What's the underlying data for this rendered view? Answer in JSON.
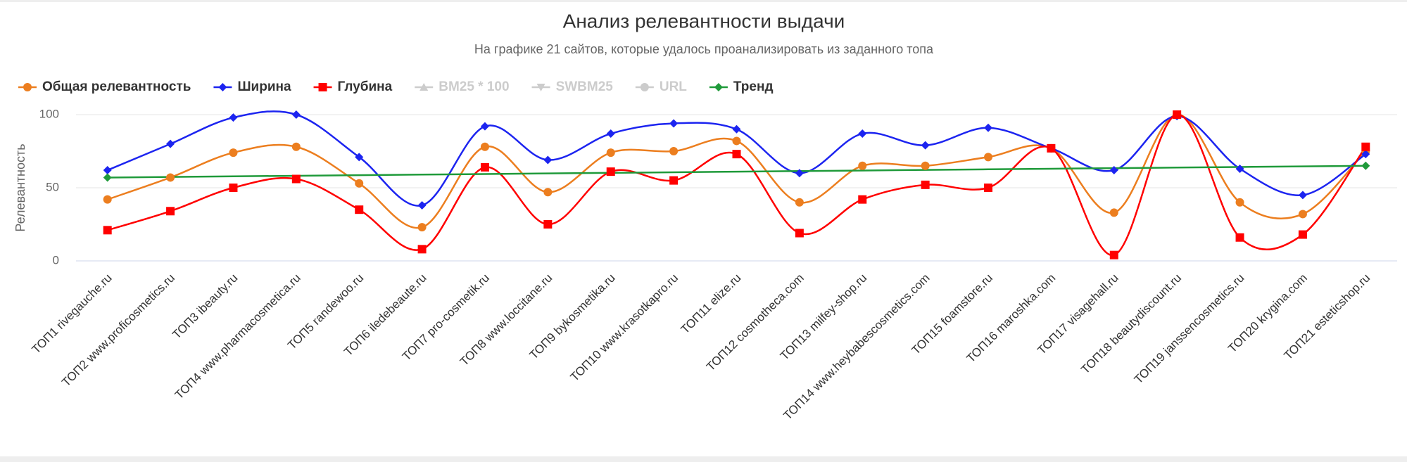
{
  "chart_data": {
    "type": "spline",
    "title": "Анализ релевантности выдачи",
    "subtitle": "На графике 21 сайтов, которые удалось проанализировать из заданного топа",
    "y_axis_label": "Релевантность",
    "categories": [
      "ТОП1 rivegauche.ru",
      "ТОП2 www.proficosmetics.ru",
      "ТОП3 ibeauty.ru",
      "ТОП4 www.pharmacosmetica.ru",
      "ТОП5 randewoo.ru",
      "ТОП6 iledebeaute.ru",
      "ТОП7 pro-cosmetik.ru",
      "ТОП8 www.loccitane.ru",
      "ТОП9 bykosmetika.ru",
      "ТОП10 www.krasotkapro.ru",
      "ТОП11 elize.ru",
      "ТОП12 cosmotheca.com",
      "ТОП13 milfey-shop.ru",
      "ТОП14 www.heybabescosmetics.com",
      "ТОП15 foamstore.ru",
      "ТОП16 maroshka.com",
      "ТОП17 visagehall.ru",
      "ТОП18 beautydiscount.ru",
      "ТОП19 janssencosmetics.ru",
      "ТОП20 krygina.com",
      "ТОП21 esteticshop.ru"
    ],
    "ylim": [
      0,
      100
    ],
    "yticks": [
      0,
      50,
      100
    ],
    "grid": true,
    "legend": "top-left",
    "series": [
      {
        "name": "Общая релевантность",
        "color": "#ec7e1f",
        "marker": "circle",
        "visible": true,
        "values": [
          42,
          57,
          74,
          78,
          53,
          23,
          78,
          47,
          74,
          75,
          82,
          40,
          65,
          65,
          71,
          77,
          33,
          100,
          40,
          32,
          75
        ]
      },
      {
        "name": "Ширина",
        "color": "#1c24f0",
        "marker": "diamond",
        "visible": true,
        "values": [
          62,
          80,
          98,
          100,
          71,
          38,
          92,
          69,
          87,
          94,
          90,
          60,
          87,
          79,
          91,
          77,
          62,
          99,
          63,
          45,
          73
        ]
      },
      {
        "name": "Глубина",
        "color": "#ff0000",
        "marker": "square",
        "visible": true,
        "values": [
          21,
          34,
          50,
          56,
          35,
          8,
          64,
          25,
          61,
          55,
          73,
          19,
          42,
          52,
          50,
          77,
          4,
          100,
          16,
          18,
          78
        ]
      },
      {
        "name": "BM25 * 100",
        "color": "#cccccc",
        "marker": "triangle",
        "visible": false
      },
      {
        "name": "SWBM25",
        "color": "#cccccc",
        "marker": "triangle-down",
        "visible": false
      },
      {
        "name": "URL",
        "color": "#cccccc",
        "marker": "circle",
        "visible": false
      },
      {
        "name": "Тренд",
        "color": "#1f9a3a",
        "marker": "diamond",
        "visible": true,
        "smooth": false,
        "endpoint_markers": true,
        "values": [
          57,
          57.4,
          57.8,
          58.2,
          58.6,
          59,
          59.4,
          59.8,
          60.2,
          60.6,
          61,
          61.4,
          61.8,
          62.2,
          62.6,
          63,
          63.4,
          63.8,
          64.2,
          64.6,
          65
        ]
      }
    ]
  }
}
